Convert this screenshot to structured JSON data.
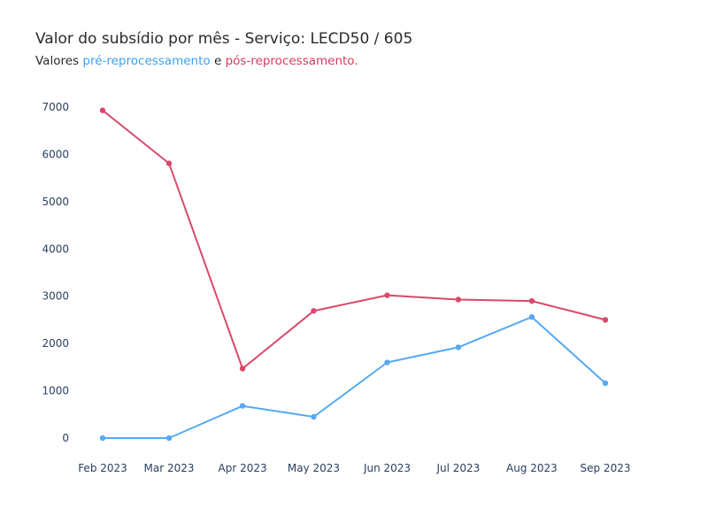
{
  "chart_data": {
    "type": "line",
    "title": "Valor do subsídio por mês - Serviço: LECD50 / 605",
    "subtitle": {
      "prefix": "Valores",
      "pre_label": "pré-reprocessamento",
      "connector": "e",
      "post_label": "pós-reprocessamento."
    },
    "categories": [
      "Feb 2023",
      "Mar 2023",
      "Apr 2023",
      "May 2023",
      "Jun 2023",
      "Jul 2023",
      "Aug 2023",
      "Sep 2023"
    ],
    "x_days": [
      0,
      28,
      59,
      89,
      120,
      150,
      181,
      212
    ],
    "y_ticks": [
      0,
      1000,
      2000,
      3000,
      4000,
      5000,
      6000,
      7000
    ],
    "ylim": [
      0,
      7000
    ],
    "grid": false,
    "series": [
      {
        "key": "pre",
        "values": [
          0,
          0,
          680,
          450,
          1600,
          1920,
          2560,
          1160
        ],
        "color": "#56a9f5"
      },
      {
        "key": "post",
        "values": [
          6930,
          5810,
          1470,
          2690,
          3020,
          2930,
          2900,
          2500
        ],
        "color": "#d9496a"
      }
    ]
  }
}
